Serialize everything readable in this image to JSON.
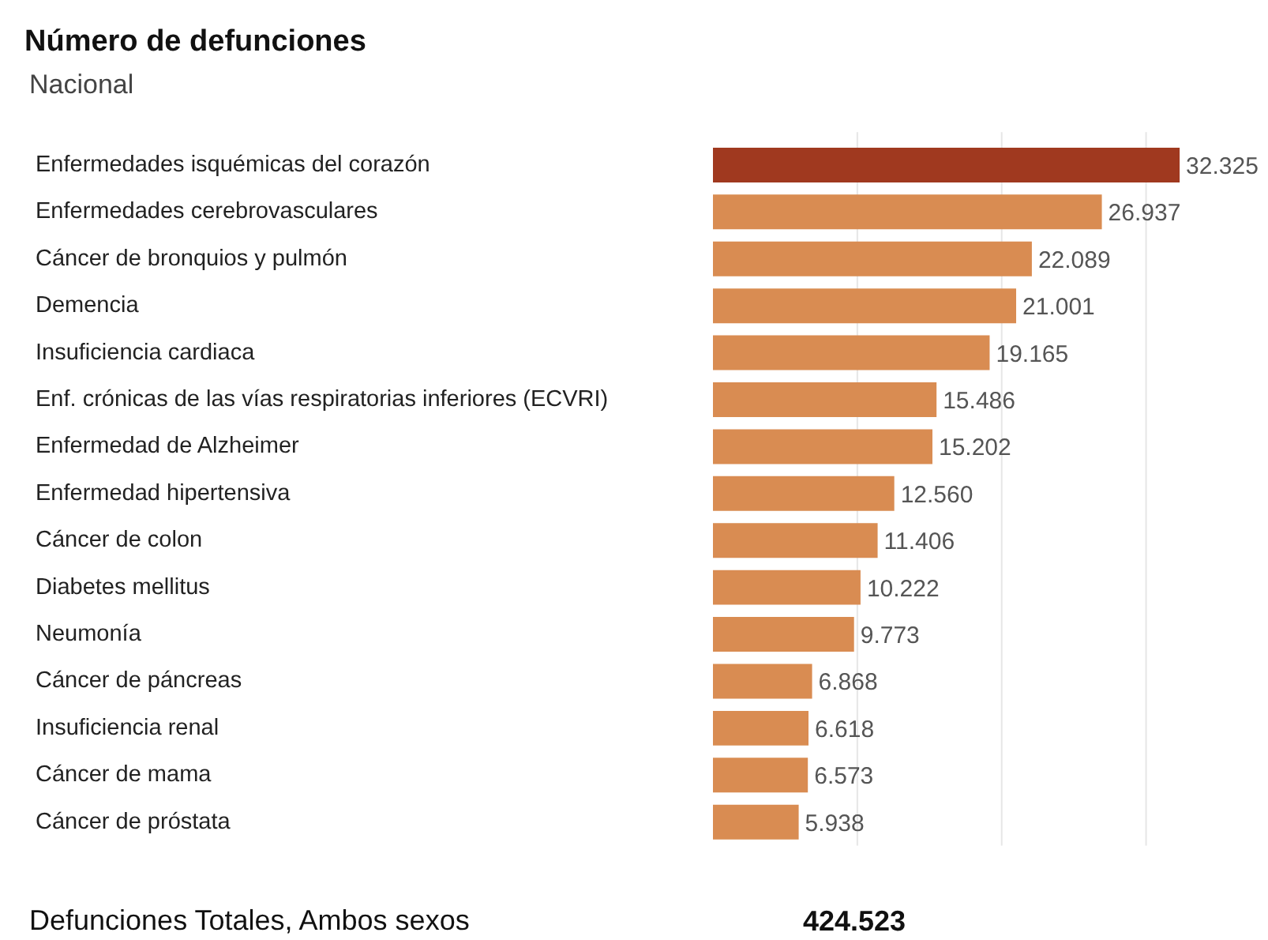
{
  "chart_data": {
    "type": "bar",
    "orientation": "horizontal",
    "title": "Número de defunciones",
    "subtitle": "Nacional",
    "categories": [
      "Enfermedades isquémicas del corazón",
      "Enfermedades cerebrovasculares",
      "Cáncer de bronquios y pulmón",
      "Demencia",
      "Insuficiencia cardiaca",
      "Enf. crónicas de las vías respiratorias inferiores (ECVRI)",
      "Enfermedad de Alzheimer",
      "Enfermedad hipertensiva",
      "Cáncer de colon",
      "Diabetes mellitus",
      "Neumonía",
      "Cáncer de páncreas",
      "Insuficiencia renal",
      "Cáncer de mama",
      "Cáncer de próstata"
    ],
    "values": [
      32325,
      26937,
      22089,
      21001,
      19165,
      15486,
      15202,
      12560,
      11406,
      10222,
      9773,
      6868,
      6618,
      6573,
      5938
    ],
    "value_labels": [
      "32.325",
      "26.937",
      "22.089",
      "21.001",
      "19.165",
      "15.486",
      "15.202",
      "12.560",
      "11.406",
      "10.222",
      "9.773",
      "6.868",
      "6.618",
      "6.573",
      "5.938"
    ],
    "colors": [
      "#a0391f",
      "#d98c52",
      "#d98c52",
      "#d98c52",
      "#d98c52",
      "#d98c52",
      "#d98c52",
      "#d98c52",
      "#d98c52",
      "#d98c52",
      "#d98c52",
      "#d98c52",
      "#d98c52",
      "#d98c52",
      "#d98c52"
    ],
    "xlim": [
      0,
      38500
    ],
    "xticks": [
      {
        "value": 10000,
        "label": null
      },
      {
        "value": 20000,
        "label": null
      },
      {
        "value": 30000,
        "label": null
      }
    ],
    "grid": "x",
    "tick_labels": false,
    "annotations": [
      "Defunciones Totales, Ambos sexos",
      "424.523"
    ]
  }
}
